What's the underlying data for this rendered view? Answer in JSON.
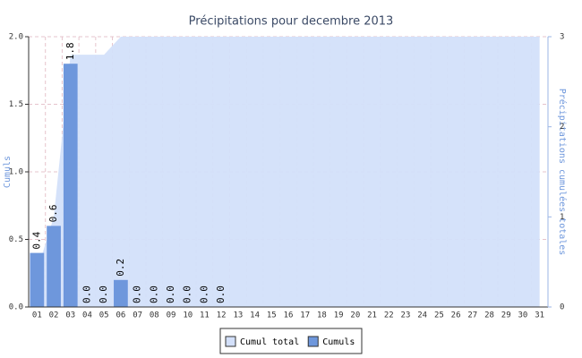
{
  "chart_data": {
    "type": "bar",
    "title": "Précipitations pour decembre 2013",
    "y_label": "Cumuls",
    "y2_label": "Précipitations cumulées totales",
    "categories": [
      "01",
      "02",
      "03",
      "04",
      "05",
      "06",
      "07",
      "08",
      "09",
      "10",
      "11",
      "12",
      "13",
      "14",
      "15",
      "16",
      "17",
      "18",
      "19",
      "20",
      "21",
      "22",
      "23",
      "24",
      "25",
      "26",
      "27",
      "28",
      "29",
      "30",
      "31"
    ],
    "series": [
      {
        "name": "Cumul total",
        "type": "area",
        "axis": "y2",
        "color": "#d3e0fa",
        "values": [
          0.4,
          1.0,
          2.8,
          2.8,
          2.8,
          3.0,
          3.0,
          3.0,
          3.0,
          3.0,
          3.0,
          3.0,
          3.0,
          3.0,
          3.0,
          3.0,
          3.0,
          3.0,
          3.0,
          3.0,
          3.0,
          3.0,
          3.0,
          3.0,
          3.0,
          3.0,
          3.0,
          3.0,
          3.0,
          3.0,
          3.0
        ]
      },
      {
        "name": "Cumuls",
        "type": "bar",
        "color": "#6e97dc",
        "values": [
          0.4,
          0.6,
          1.8,
          0,
          0,
          0.2,
          0,
          0,
          0,
          0,
          0,
          0,
          null,
          null,
          null,
          null,
          null,
          null,
          null,
          null,
          null,
          null,
          null,
          null,
          null,
          null,
          null,
          null,
          null,
          null,
          null
        ],
        "value_labels": [
          "0.4",
          "0.6",
          "1.8",
          "0.0",
          "0.0",
          "0.2",
          "0.0",
          "0.0",
          "0.0",
          "0.0",
          "0.0",
          "0.0",
          null,
          null,
          null,
          null,
          null,
          null,
          null,
          null,
          null,
          null,
          null,
          null,
          null,
          null,
          null,
          null,
          null,
          null,
          null
        ]
      }
    ],
    "ylim": [
      0,
      2
    ],
    "yticks": [
      {
        "value": 0,
        "label": "0.0"
      },
      0.5,
      {
        "value": 1,
        "label": "1.0"
      },
      1.5,
      {
        "value": 2,
        "label": "2.0"
      }
    ],
    "y2lim": [
      0,
      3
    ],
    "y2ticks": [
      0,
      1,
      2,
      3
    ],
    "grid": true,
    "legend": "bottom"
  }
}
